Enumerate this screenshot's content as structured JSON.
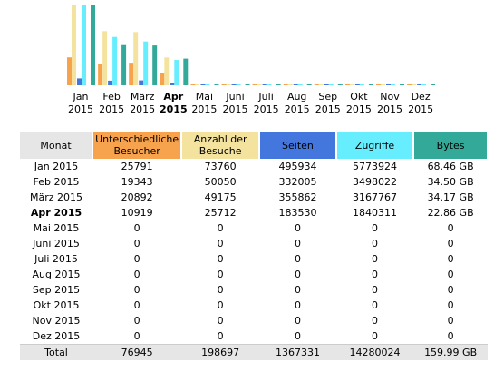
{
  "colors": {
    "visitors": "#f7a34e",
    "visits": "#f4e39e",
    "pages": "#4477dd",
    "hits": "#66eeff",
    "bytes": "#33aa99"
  },
  "chart_data": {
    "type": "bar",
    "categories": [
      "Jan 2015",
      "Feb 2015",
      "März 2015",
      "Apr 2015",
      "Mai 2015",
      "Juni 2015",
      "Juli 2015",
      "Aug 2015",
      "Sep 2015",
      "Okt 2015",
      "Nov 2015",
      "Dez 2015"
    ],
    "month_labels": [
      {
        "m": "Jan",
        "y": "2015"
      },
      {
        "m": "Feb",
        "y": "2015"
      },
      {
        "m": "März",
        "y": "2015"
      },
      {
        "m": "Apr",
        "y": "2015"
      },
      {
        "m": "Mai",
        "y": "2015"
      },
      {
        "m": "Juni",
        "y": "2015"
      },
      {
        "m": "Juli",
        "y": "2015"
      },
      {
        "m": "Aug",
        "y": "2015"
      },
      {
        "m": "Sep",
        "y": "2015"
      },
      {
        "m": "Okt",
        "y": "2015"
      },
      {
        "m": "Nov",
        "y": "2015"
      },
      {
        "m": "Dez",
        "y": "2015"
      }
    ],
    "current_index": 3,
    "series": [
      {
        "key": "visitors",
        "values": [
          25791,
          19343,
          20892,
          10919,
          0,
          0,
          0,
          0,
          0,
          0,
          0,
          0
        ]
      },
      {
        "key": "visits",
        "values": [
          73760,
          50050,
          49175,
          25712,
          0,
          0,
          0,
          0,
          0,
          0,
          0,
          0
        ]
      },
      {
        "key": "pages",
        "values": [
          495934,
          332005,
          355862,
          183530,
          0,
          0,
          0,
          0,
          0,
          0,
          0,
          0
        ]
      },
      {
        "key": "hits",
        "values": [
          5773924,
          3498022,
          3167767,
          1840311,
          0,
          0,
          0,
          0,
          0,
          0,
          0,
          0
        ]
      },
      {
        "key": "bytes",
        "values": [
          68.46,
          34.5,
          34.17,
          22.86,
          0,
          0,
          0,
          0,
          0,
          0,
          0,
          0
        ]
      }
    ]
  },
  "table": {
    "headers": {
      "month": "Monat",
      "visitors_line1": "Unterschiedliche",
      "visitors_line2": "Besucher",
      "visits_line1": "Anzahl der",
      "visits_line2": "Besuche",
      "pages": "Seiten",
      "hits": "Zugriffe",
      "bytes": "Bytes"
    },
    "rows": [
      {
        "month": "Jan 2015",
        "visitors": "25791",
        "visits": "73760",
        "pages": "495934",
        "hits": "5773924",
        "bytes": "68.46 GB"
      },
      {
        "month": "Feb 2015",
        "visitors": "19343",
        "visits": "50050",
        "pages": "332005",
        "hits": "3498022",
        "bytes": "34.50 GB"
      },
      {
        "month": "März 2015",
        "visitors": "20892",
        "visits": "49175",
        "pages": "355862",
        "hits": "3167767",
        "bytes": "34.17 GB"
      },
      {
        "month": "Apr 2015",
        "visitors": "10919",
        "visits": "25712",
        "pages": "183530",
        "hits": "1840311",
        "bytes": "22.86 GB"
      },
      {
        "month": "Mai 2015",
        "visitors": "0",
        "visits": "0",
        "pages": "0",
        "hits": "0",
        "bytes": "0"
      },
      {
        "month": "Juni 2015",
        "visitors": "0",
        "visits": "0",
        "pages": "0",
        "hits": "0",
        "bytes": "0"
      },
      {
        "month": "Juli 2015",
        "visitors": "0",
        "visits": "0",
        "pages": "0",
        "hits": "0",
        "bytes": "0"
      },
      {
        "month": "Aug 2015",
        "visitors": "0",
        "visits": "0",
        "pages": "0",
        "hits": "0",
        "bytes": "0"
      },
      {
        "month": "Sep 2015",
        "visitors": "0",
        "visits": "0",
        "pages": "0",
        "hits": "0",
        "bytes": "0"
      },
      {
        "month": "Okt 2015",
        "visitors": "0",
        "visits": "0",
        "pages": "0",
        "hits": "0",
        "bytes": "0"
      },
      {
        "month": "Nov 2015",
        "visitors": "0",
        "visits": "0",
        "pages": "0",
        "hits": "0",
        "bytes": "0"
      },
      {
        "month": "Dez 2015",
        "visitors": "0",
        "visits": "0",
        "pages": "0",
        "hits": "0",
        "bytes": "0"
      }
    ],
    "total": {
      "label": "Total",
      "visitors": "76945",
      "visits": "198697",
      "pages": "1367331",
      "hits": "14280024",
      "bytes": "159.99 GB"
    }
  }
}
